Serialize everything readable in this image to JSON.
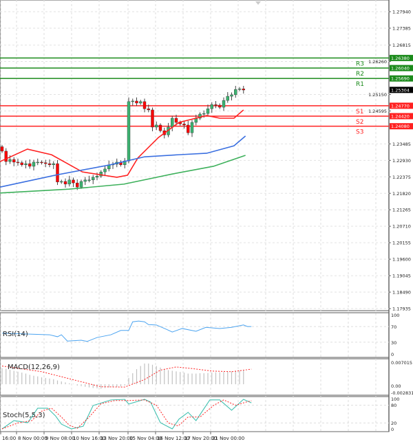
{
  "chart_data": [
    {
      "type": "candlestick",
      "pane": "price",
      "ylim": [
        1.17935,
        1.2794
      ],
      "y_ticks": [
        "1.27940",
        "1.27385",
        "1.26815",
        "1.26260",
        "1.25150",
        "1.24595",
        "1.23485",
        "1.22930",
        "1.22375",
        "1.21820",
        "1.21265",
        "1.20710",
        "1.20155",
        "1.19600",
        "1.19045",
        "1.18490",
        "1.17935"
      ],
      "last_price": "1.25304",
      "closes": [
        1.2324,
        1.2289,
        1.2296,
        1.2287,
        1.2285,
        1.2278,
        1.2282,
        1.2273,
        1.2287,
        1.2287,
        1.2285,
        1.2282,
        1.2278,
        1.2282,
        1.222,
        1.2222,
        1.2213,
        1.2227,
        1.2217,
        1.2203,
        1.2222,
        1.2227,
        1.2227,
        1.2236,
        1.224,
        1.2254,
        1.2264,
        1.2278,
        1.228,
        1.2287,
        1.2278,
        1.2291,
        1.2491,
        1.2493,
        1.2486,
        1.2491,
        1.2467,
        1.2463,
        1.2405,
        1.2412,
        1.2393,
        1.2379,
        1.2405,
        1.2435,
        1.2421,
        1.2416,
        1.2412,
        1.2386,
        1.2421,
        1.2435,
        1.2449,
        1.2451,
        1.2467,
        1.2481,
        1.2479,
        1.2472,
        1.2495,
        1.2509,
        1.2514,
        1.2532,
        1.2534,
        1.253
      ],
      "moving_averages": [
        {
          "color": "#ff2020",
          "points": [
            [
              -0.5,
              1.2289
            ],
            [
              6.4,
              1.2331
            ],
            [
              12.5,
              1.2312
            ],
            [
              20.3,
              1.2254
            ],
            [
              29,
              1.2236
            ],
            [
              31.7,
              1.2243
            ],
            [
              34.3,
              1.2301
            ],
            [
              39.5,
              1.237
            ],
            [
              44.7,
              1.2421
            ],
            [
              51.7,
              1.2444
            ],
            [
              55,
              1.2435
            ],
            [
              58.6,
              1.2435
            ],
            [
              61,
              1.2463
            ]
          ]
        },
        {
          "color": "#3a6fe0",
          "points": [
            [
              -0.5,
              1.2203
            ],
            [
              13.4,
              1.2243
            ],
            [
              27.3,
              1.2278
            ],
            [
              36,
              1.2305
            ],
            [
              44.7,
              1.2312
            ],
            [
              51.7,
              1.2317
            ],
            [
              58.6,
              1.2342
            ],
            [
              61.5,
              1.2375
            ]
          ]
        },
        {
          "color": "#3cb05a",
          "points": [
            [
              -0.5,
              1.2183
            ],
            [
              16.9,
              1.2196
            ],
            [
              30.8,
              1.2213
            ],
            [
              43,
              1.2247
            ],
            [
              53.4,
              1.2273
            ],
            [
              61.5,
              1.231
            ]
          ]
        }
      ],
      "levels": [
        {
          "label": "R3",
          "value": "1.26380",
          "color": "#1a8a1a"
        },
        {
          "label": "R2",
          "value": "1.26040",
          "color": "#1a8a1a"
        },
        {
          "label": "R1",
          "value": "1.25690",
          "color": "#1a8a1a"
        },
        {
          "label": "S1",
          "value": "1.24770",
          "color": "#ff2020"
        },
        {
          "label": "S2",
          "value": "1.24420",
          "color": "#ff2020"
        },
        {
          "label": "S3",
          "value": "1.24080",
          "color": "#ff2020"
        }
      ],
      "colors": {
        "up": "#3cb371",
        "down": "#ff0000",
        "wick": "#444444"
      }
    },
    {
      "type": "line",
      "pane": "rsi",
      "title": "RSI(14)",
      "ylim": [
        0,
        100
      ],
      "y_ticks": [
        "100",
        "70",
        "30",
        "0"
      ],
      "color": "#4aa3f0",
      "points": [
        [
          0,
          53
        ],
        [
          12,
          49
        ],
        [
          14,
          44
        ],
        [
          15,
          49
        ],
        [
          16.5,
          33
        ],
        [
          20,
          35
        ],
        [
          21.5,
          32
        ],
        [
          24,
          42
        ],
        [
          27.5,
          49
        ],
        [
          30,
          60
        ],
        [
          32,
          60
        ],
        [
          33,
          82
        ],
        [
          34.5,
          84
        ],
        [
          36,
          82
        ],
        [
          37,
          75
        ],
        [
          39,
          74
        ],
        [
          41.5,
          63
        ],
        [
          43,
          56
        ],
        [
          45.5,
          65
        ],
        [
          49,
          58
        ],
        [
          51.5,
          68
        ],
        [
          55,
          65
        ],
        [
          58,
          68
        ],
        [
          61,
          74
        ],
        [
          62,
          70
        ],
        [
          63,
          70
        ]
      ]
    },
    {
      "type": "bar+line",
      "pane": "macd",
      "title": "MACD(12,26,9)",
      "y_ticks": [
        "0.007015",
        "0.00",
        "-0.002831"
      ],
      "ylim": [
        -0.002831,
        0.007015
      ],
      "histogram": [
        0.0051,
        0.0049,
        0.0046,
        0.0043,
        0.004,
        0.0037,
        0.0034,
        0.003,
        0.0027,
        0.0025,
        0.0022,
        0.002,
        0.0018,
        0.0016,
        0.0012,
        0.0009,
        0.0006,
        0.0003,
        0.0001,
        -0.0004,
        -0.0006,
        -0.0008,
        -0.001,
        -0.0012,
        -0.0013,
        -0.0014,
        -0.0012,
        -0.001,
        -0.0009,
        -0.0008,
        -0.0007,
        -0.0004,
        0.002,
        0.0035,
        0.0048,
        0.0058,
        0.0066,
        0.0066,
        0.0062,
        0.0058,
        0.0053,
        0.0048,
        0.0045,
        0.0043,
        0.0041,
        0.0039,
        0.0037,
        0.0034,
        0.0034,
        0.0034,
        0.0035,
        0.0035,
        0.0036,
        0.0037,
        0.0038,
        0.0038,
        0.0039,
        0.004,
        0.0041,
        0.0043,
        0.0044,
        0.0045
      ],
      "signal": [
        [
          0,
          0.0058
        ],
        [
          10,
          0.004
        ],
        [
          20,
          0.0008
        ],
        [
          25,
          -0.0008
        ],
        [
          31,
          -0.0009
        ],
        [
          36,
          0.0015
        ],
        [
          40,
          0.0045
        ],
        [
          44,
          0.0055
        ],
        [
          48,
          0.005
        ],
        [
          53,
          0.0042
        ],
        [
          58,
          0.004
        ],
        [
          63,
          0.0048
        ]
      ],
      "colors": {
        "histogram": "#c0c0c0",
        "signal": "#ff2020"
      }
    },
    {
      "type": "line",
      "pane": "stochastic",
      "title": "Stoch(5,5,3)",
      "ylim": [
        0,
        100
      ],
      "y_ticks": [
        "100",
        "80",
        "20",
        "0"
      ],
      "main": [
        [
          0,
          0
        ],
        [
          3,
          28
        ],
        [
          6.5,
          21
        ],
        [
          9,
          70
        ],
        [
          11.5,
          70
        ],
        [
          13.5,
          44
        ],
        [
          15,
          16
        ],
        [
          17.5,
          0
        ],
        [
          20.5,
          9
        ],
        [
          23,
          79
        ],
        [
          27.5,
          98
        ],
        [
          31,
          100
        ],
        [
          32,
          84
        ],
        [
          36,
          100
        ],
        [
          37.5,
          91
        ],
        [
          40,
          21
        ],
        [
          43,
          0
        ],
        [
          44.7,
          33
        ],
        [
          47,
          56
        ],
        [
          49,
          28
        ],
        [
          52.5,
          98
        ],
        [
          55,
          98
        ],
        [
          58,
          63
        ],
        [
          61,
          100
        ],
        [
          63,
          88
        ]
      ],
      "signal": [
        [
          0,
          0
        ],
        [
          4,
          20
        ],
        [
          7.5,
          28
        ],
        [
          10,
          60
        ],
        [
          12.5,
          70
        ],
        [
          15,
          40
        ],
        [
          17,
          12
        ],
        [
          19,
          2
        ],
        [
          22,
          40
        ],
        [
          25,
          85
        ],
        [
          28.5,
          96
        ],
        [
          32,
          96
        ],
        [
          36,
          98
        ],
        [
          39,
          80
        ],
        [
          42,
          20
        ],
        [
          44.5,
          10
        ],
        [
          47,
          40
        ],
        [
          50,
          40
        ],
        [
          53.5,
          80
        ],
        [
          56,
          98
        ],
        [
          59,
          80
        ],
        [
          62,
          92
        ],
        [
          63,
          95
        ]
      ],
      "colors": {
        "main": "#40c0b0",
        "signal": "#ff2020"
      }
    }
  ],
  "time_axis": {
    "labels": [
      "16:00",
      "8 Nov 00:00",
      "9 Nov 08:00",
      "10 Nov 16:00",
      "13 Nov 20:00",
      "15 Nov 04:00",
      "16 Nov 12:00",
      "17 Nov 20:00",
      "21 Nov 00:00"
    ]
  }
}
